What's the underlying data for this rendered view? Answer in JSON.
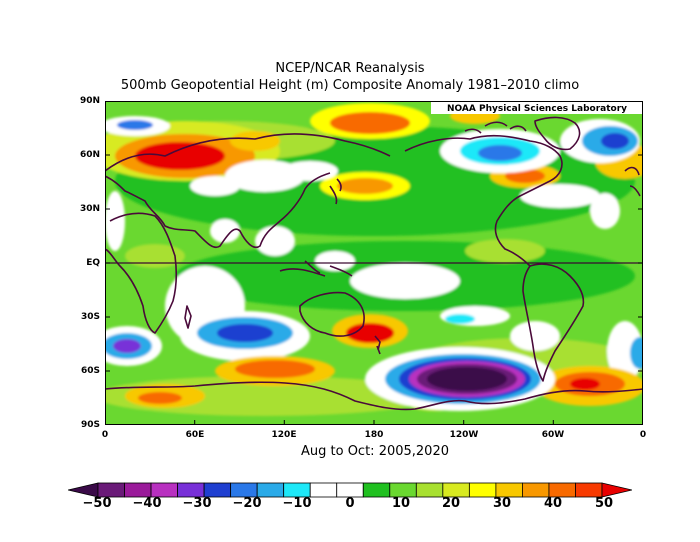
{
  "header": {
    "title": "NCEP/NCAR Reanalysis",
    "subtitle": "500mb Geopotential Height (m) Composite Anomaly 1981–2010 climo"
  },
  "map": {
    "credit": "NOAA Physical Sciences Laboratory",
    "lat_labels": [
      "90N",
      "60N",
      "30N",
      "EQ",
      "30S",
      "60S",
      "90S"
    ],
    "lon_labels": [
      "0",
      "60E",
      "120E",
      "180",
      "120W",
      "60W",
      "0"
    ],
    "period": "Aug to Oct: 2005,2020"
  },
  "colorbar": {
    "labels": [
      "−50",
      "−40",
      "−30",
      "−20",
      "−10",
      "0",
      "10",
      "20",
      "30",
      "40",
      "50"
    ],
    "colors": [
      "#3a0a48",
      "#6a1a78",
      "#9a1a9a",
      "#b830c0",
      "#7830d8",
      "#1f3fd0",
      "#2a78e8",
      "#2aaae8",
      "#1ee8f8",
      "#ffffff",
      "#ffffff",
      "#20c020",
      "#6ad830",
      "#a8e030",
      "#d8ea20",
      "#ffff00",
      "#f8c800",
      "#f89800",
      "#f86a00",
      "#f83a00",
      "#e80000"
    ]
  }
}
